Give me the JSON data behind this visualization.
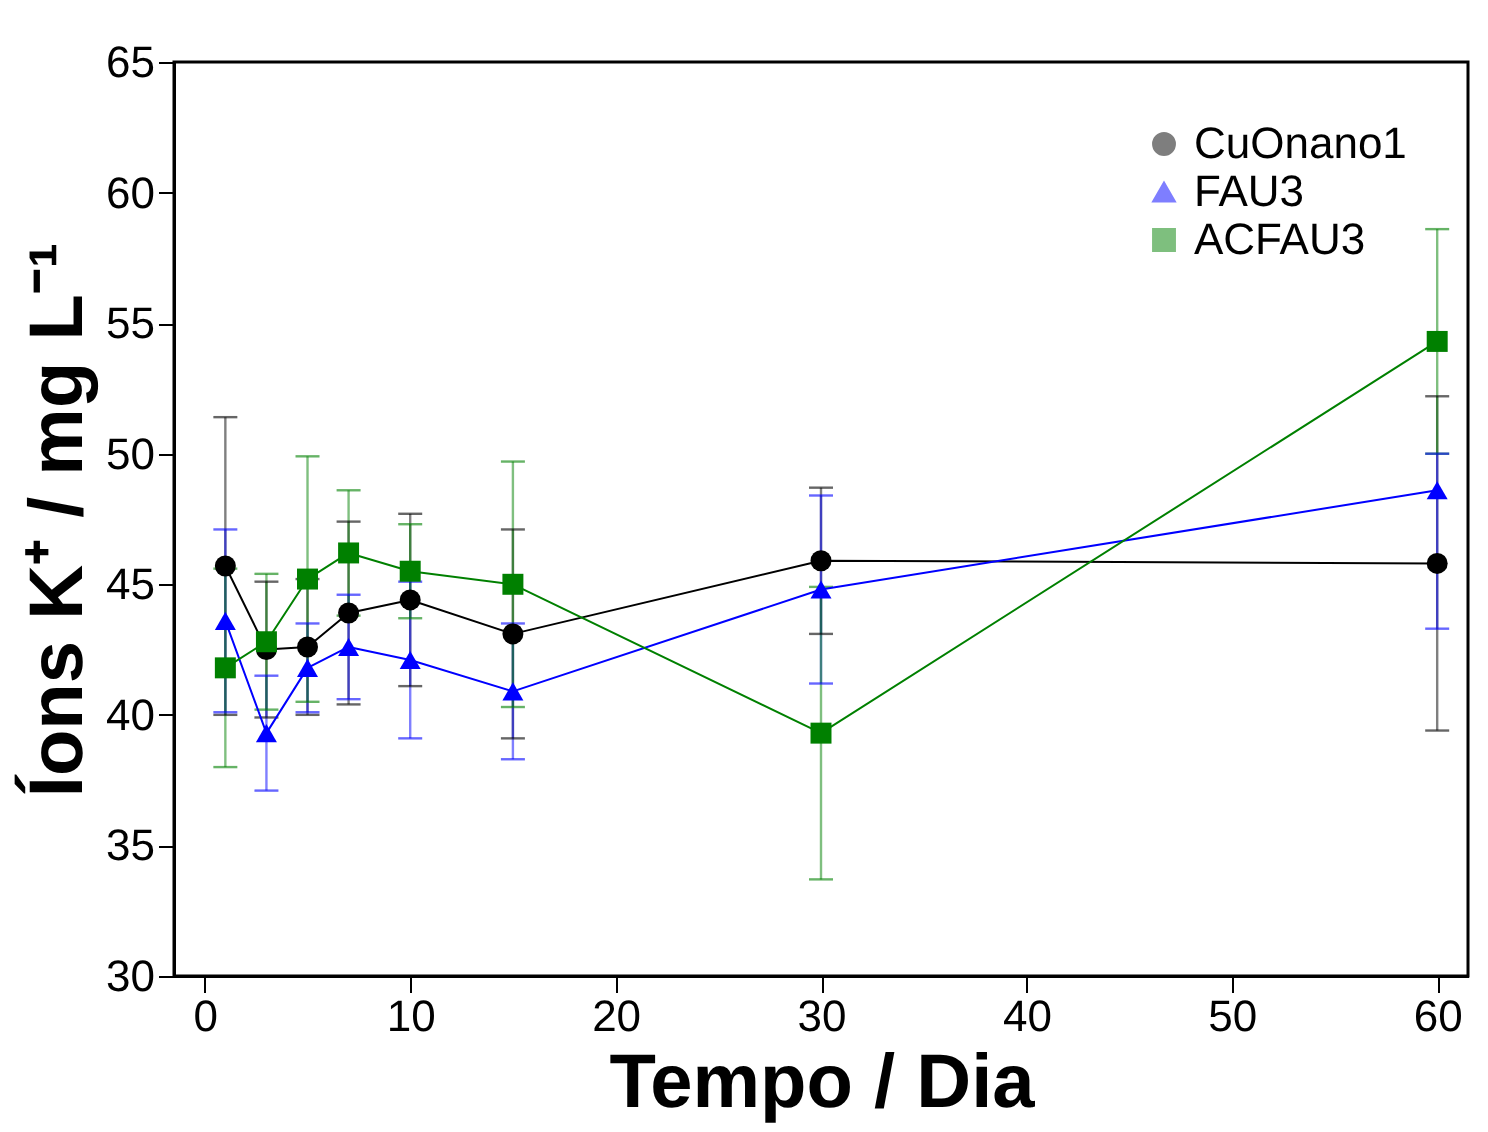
{
  "chart_data": {
    "type": "line",
    "xlabel": "Tempo / Dia",
    "ylabel": "Íons K⁺ / mg L⁻¹",
    "x": [
      1,
      3,
      5,
      7,
      10,
      15,
      30,
      60
    ],
    "series": [
      {
        "name": "CuOnano1",
        "color": "#000000",
        "marker": "circle",
        "values": [
          45.7,
          42.5,
          42.6,
          43.9,
          44.4,
          43.1,
          45.9,
          45.8
        ],
        "errors": [
          5.7,
          2.6,
          2.6,
          3.5,
          3.3,
          4.0,
          2.8,
          6.4
        ]
      },
      {
        "name": "FAU3",
        "color": "#0000ff",
        "marker": "triangle",
        "values": [
          43.6,
          39.3,
          41.8,
          42.6,
          42.1,
          40.9,
          44.8,
          48.6
        ],
        "errors": [
          3.5,
          2.2,
          1.7,
          2.0,
          3.0,
          2.6,
          3.6,
          [
            43.3,
            50.0
          ]
        ]
      },
      {
        "name": "ACFAU3",
        "color": "#008000",
        "marker": "square",
        "values": [
          41.8,
          42.8,
          45.2,
          46.2,
          45.5,
          45.0,
          39.3,
          54.3
        ],
        "errors": [
          3.8,
          2.6,
          4.7,
          2.4,
          1.8,
          4.7,
          5.6,
          4.3
        ]
      }
    ],
    "xlim": [
      -1.5,
      61.5
    ],
    "xticks": [
      0,
      10,
      20,
      30,
      40,
      50,
      60
    ],
    "ylim": [
      30,
      65
    ],
    "yticks": [
      30,
      35,
      40,
      45,
      50,
      55,
      60,
      65
    ],
    "legend": "top right",
    "grid": false
  }
}
